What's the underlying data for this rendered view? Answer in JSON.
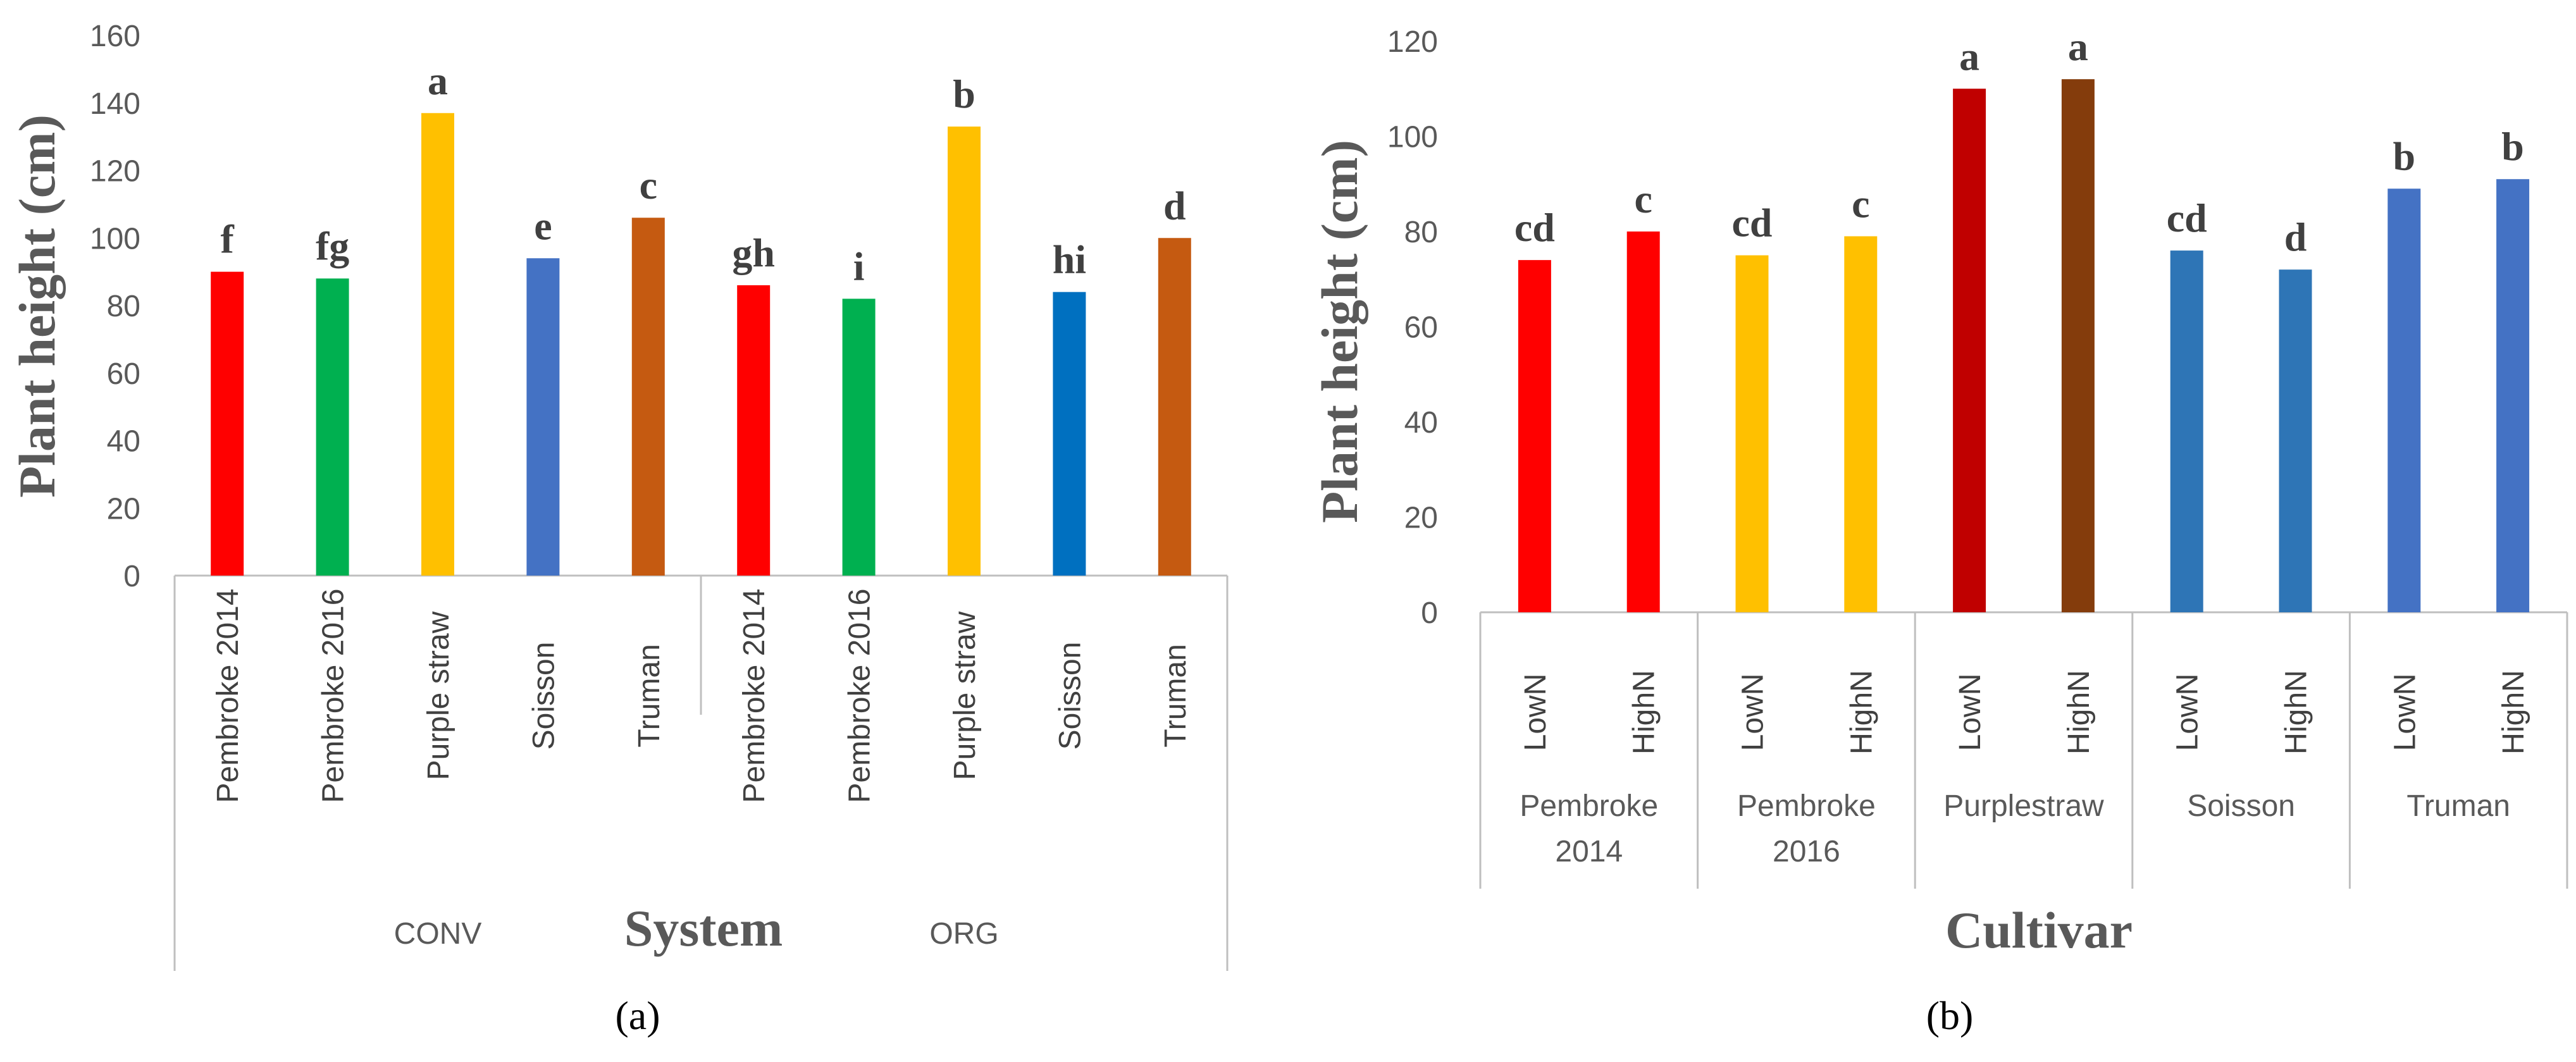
{
  "chart_data": [
    {
      "panel_label": "(a)",
      "type": "bar",
      "ylabel": "Plant height (cm)",
      "xlabel": "System",
      "ylim": [
        0,
        160
      ],
      "yticks": [
        0,
        20,
        40,
        60,
        80,
        100,
        120,
        140,
        160
      ],
      "groups": [
        {
          "name": "CONV",
          "bars": [
            {
              "category": "Pembroke 2014",
              "value": 90,
              "letter": "f",
              "color": "#ff0000"
            },
            {
              "category": "Pembroke 2016",
              "value": 88,
              "letter": "fg",
              "color": "#00b050"
            },
            {
              "category": "Purple straw",
              "value": 137,
              "letter": "a",
              "color": "#ffc000"
            },
            {
              "category": "Soisson",
              "value": 94,
              "letter": "e",
              "color": "#4472c4"
            },
            {
              "category": "Truman",
              "value": 106,
              "letter": "c",
              "color": "#c55a11"
            }
          ]
        },
        {
          "name": "ORG",
          "bars": [
            {
              "category": "Pembroke 2014",
              "value": 86,
              "letter": "gh",
              "color": "#ff0000"
            },
            {
              "category": "Pembroke 2016",
              "value": 82,
              "letter": "i",
              "color": "#00b050"
            },
            {
              "category": "Purple straw",
              "value": 133,
              "letter": "b",
              "color": "#ffc000"
            },
            {
              "category": "Soisson",
              "value": 84,
              "letter": "hi",
              "color": "#0070c0"
            },
            {
              "category": "Truman",
              "value": 100,
              "letter": "d",
              "color": "#c55a11"
            }
          ]
        }
      ]
    },
    {
      "panel_label": "(b)",
      "type": "bar",
      "ylabel": "Plant height (cm)",
      "xlabel": "Cultivar",
      "ylim": [
        0,
        120
      ],
      "yticks": [
        0,
        20,
        40,
        60,
        80,
        100,
        120
      ],
      "groups": [
        {
          "name_lines": [
            "Pembroke",
            "2014"
          ],
          "bars": [
            {
              "category": "LowN",
              "value": 74,
              "letter": "cd",
              "color": "#ff0000"
            },
            {
              "category": "HighN",
              "value": 80,
              "letter": "c",
              "color": "#ff0000"
            }
          ]
        },
        {
          "name_lines": [
            "Pembroke",
            "2016"
          ],
          "bars": [
            {
              "category": "LowN",
              "value": 75,
              "letter": "cd",
              "color": "#ffc000"
            },
            {
              "category": "HighN",
              "value": 79,
              "letter": "c",
              "color": "#ffc000"
            }
          ]
        },
        {
          "name_lines": [
            "Purplestraw"
          ],
          "bars": [
            {
              "category": "LowN",
              "value": 110,
              "letter": "a",
              "color": "#c00000"
            },
            {
              "category": "HighN",
              "value": 112,
              "letter": "a",
              "color": "#843c0c"
            }
          ]
        },
        {
          "name_lines": [
            "Soisson"
          ],
          "bars": [
            {
              "category": "LowN",
              "value": 76,
              "letter": "cd",
              "color": "#2e75b6"
            },
            {
              "category": "HighN",
              "value": 72,
              "letter": "d",
              "color": "#2e75b6"
            }
          ]
        },
        {
          "name_lines": [
            "Truman"
          ],
          "bars": [
            {
              "category": "LowN",
              "value": 89,
              "letter": "b",
              "color": "#4472c4"
            },
            {
              "category": "HighN",
              "value": 91,
              "letter": "b",
              "color": "#4472c4"
            }
          ]
        }
      ]
    }
  ]
}
